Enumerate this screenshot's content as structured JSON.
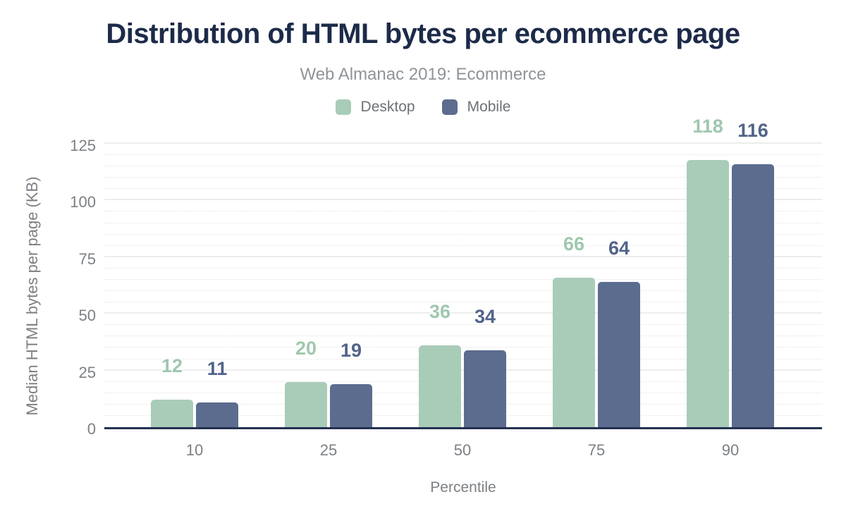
{
  "chart_data": {
    "type": "bar",
    "title": "Distribution of HTML bytes per ecommerce page",
    "subtitle": "Web Almanac 2019: Ecommerce",
    "categories": [
      "10",
      "25",
      "50",
      "75",
      "90"
    ],
    "series": [
      {
        "name": "Desktop",
        "color": "#a9ccb9",
        "label_color": "#a0c7af",
        "values": [
          12,
          20,
          36,
          66,
          118
        ]
      },
      {
        "name": "Mobile",
        "color": "#5b6c8e",
        "label_color": "#52648a",
        "values": [
          11,
          19,
          34,
          64,
          116
        ]
      }
    ],
    "xlabel": "Percentile",
    "ylabel": "Median HTML bytes per page (KB)",
    "ylim": [
      0,
      125
    ],
    "y_ticks": [
      0,
      25,
      50,
      75,
      100,
      125
    ],
    "y_major_step": 25,
    "y_minor_step": 5,
    "grid": true,
    "legend_position": "top",
    "value_labels": true
  },
  "colors": {
    "title": "#1d2b49",
    "subtitle": "#8f9499",
    "tick_label": "#7c8084",
    "legend_label": "#6e7276",
    "axis_line": "#243150",
    "gridline_major": "#ededed",
    "gridline_minor": "#e4e4e4",
    "background": "#ffffff"
  }
}
